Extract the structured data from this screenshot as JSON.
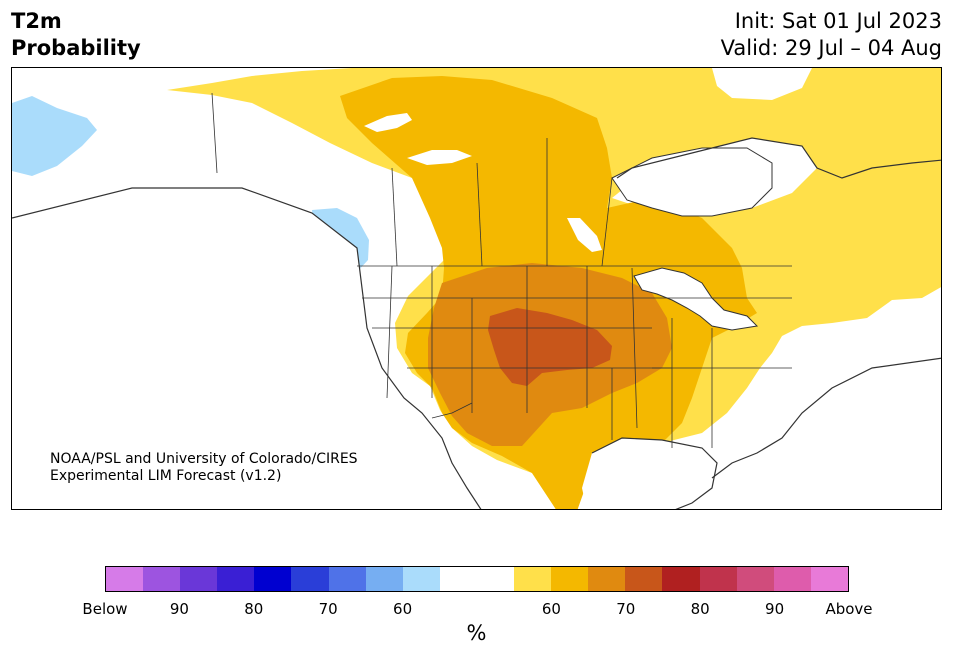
{
  "header": {
    "variable": "T2m",
    "product": "Probability",
    "init": "Init: Sat 01 Jul 2023",
    "valid": "Valid: 29 Jul – 04 Aug"
  },
  "credit": {
    "line1": "NOAA/PSL and University of Colorado/CIRES",
    "line2": "Experimental LIM Forecast (v1.2)"
  },
  "colorbar": {
    "unit": "%",
    "colors": [
      "#d67be8",
      "#9d54e0",
      "#6a37d8",
      "#3a1fd4",
      "#0000d0",
      "#2a3ed8",
      "#4f72e8",
      "#76aef2",
      "#aadcfb",
      "#ffffff",
      "#ffffff",
      "#ffe04a",
      "#f4b800",
      "#e08a10",
      "#c8561a",
      "#b02020",
      "#c0334c",
      "#d04c7c",
      "#de5cac",
      "#e87ad8"
    ],
    "ticks": [
      "Below",
      "90",
      "80",
      "70",
      "60",
      "60",
      "70",
      "80",
      "90",
      "Above"
    ]
  },
  "palette": {
    "below_60": "#aadcfb",
    "above_60": "#ffe04a",
    "above_70": "#f4b800",
    "above_80": "#e08a10",
    "above_90": "#c8561a",
    "borders": "#333333"
  }
}
